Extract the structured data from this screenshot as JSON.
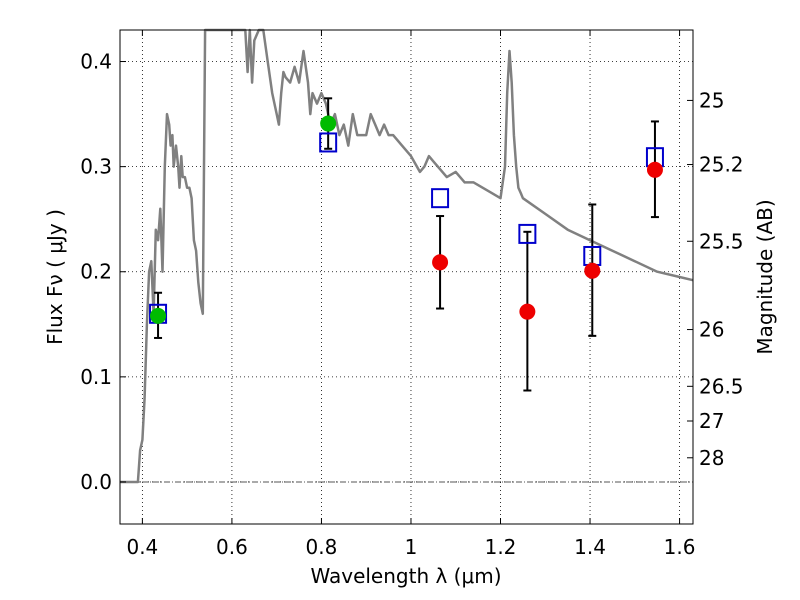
{
  "chart_data": {
    "type": "scatter",
    "xlabel": "Wavelength  λ (μm)",
    "ylabel": "Flux  Fν  ( μJy )",
    "ylabel2": "Magnitude (AB)",
    "xlim": [
      0.35,
      1.63
    ],
    "ylim": [
      -0.04,
      0.43
    ],
    "grid": true,
    "xticks": [
      0.4,
      0.6,
      0.8,
      1.0,
      1.2,
      1.4,
      1.6
    ],
    "xtick_labels": [
      "0.4",
      "0.6",
      "0.8",
      "1",
      "1.2",
      "1.4",
      "1.6"
    ],
    "yticks": [
      0.0,
      0.1,
      0.2,
      0.3,
      0.4
    ],
    "ytick_labels": [
      "0.0",
      "0.1",
      "0.2",
      "0.3",
      "0.4"
    ],
    "right_ticks": [
      {
        "label": "25",
        "flux": 0.363
      },
      {
        "label": "25.2",
        "flux": 0.302
      },
      {
        "label": "25.5",
        "flux": 0.229
      },
      {
        "label": "26",
        "flux": 0.145
      },
      {
        "label": "26.5",
        "flux": 0.091
      },
      {
        "label": "27",
        "flux": 0.058
      },
      {
        "label": "28",
        "flux": 0.023
      }
    ],
    "colors": {
      "sed": "#808080",
      "model": "#0000cc",
      "green": "#00bb00",
      "red": "#ee0000",
      "zero_line": "#555555"
    },
    "sed_line": {
      "x": [
        0.35,
        0.39,
        0.395,
        0.4,
        0.405,
        0.41,
        0.415,
        0.42,
        0.425,
        0.43,
        0.435,
        0.44,
        0.445,
        0.45,
        0.455,
        0.46,
        0.463,
        0.467,
        0.47,
        0.475,
        0.48,
        0.483,
        0.487,
        0.49,
        0.495,
        0.5,
        0.505,
        0.51,
        0.515,
        0.52,
        0.525,
        0.53,
        0.535,
        0.54,
        0.545,
        0.55,
        0.56,
        0.58,
        0.6,
        0.62,
        0.63,
        0.635,
        0.64,
        0.645,
        0.65,
        0.66,
        0.67,
        0.68,
        0.69,
        0.7,
        0.705,
        0.71,
        0.715,
        0.72,
        0.73,
        0.74,
        0.75,
        0.76,
        0.77,
        0.775,
        0.78,
        0.79,
        0.8,
        0.81,
        0.82,
        0.83,
        0.84,
        0.85,
        0.86,
        0.87,
        0.88,
        0.89,
        0.9,
        0.91,
        0.92,
        0.93,
        0.94,
        0.95,
        0.96,
        0.98,
        1.0,
        1.02,
        1.03,
        1.04,
        1.05,
        1.06,
        1.08,
        1.1,
        1.12,
        1.14,
        1.16,
        1.18,
        1.2,
        1.21,
        1.215,
        1.22,
        1.225,
        1.23,
        1.235,
        1.24,
        1.245,
        1.25,
        1.3,
        1.35,
        1.4,
        1.45,
        1.5,
        1.55,
        1.6,
        1.63
      ],
      "y": [
        0.0,
        0.0,
        0.03,
        0.04,
        0.08,
        0.15,
        0.2,
        0.21,
        0.16,
        0.24,
        0.23,
        0.26,
        0.2,
        0.3,
        0.35,
        0.34,
        0.32,
        0.33,
        0.3,
        0.32,
        0.3,
        0.28,
        0.31,
        0.29,
        0.29,
        0.28,
        0.28,
        0.27,
        0.23,
        0.22,
        0.19,
        0.17,
        0.16,
        0.43,
        0.43,
        0.43,
        0.43,
        0.43,
        0.43,
        0.43,
        0.43,
        0.39,
        0.43,
        0.38,
        0.42,
        0.43,
        0.43,
        0.4,
        0.37,
        0.35,
        0.34,
        0.37,
        0.39,
        0.385,
        0.38,
        0.395,
        0.38,
        0.41,
        0.38,
        0.35,
        0.37,
        0.36,
        0.37,
        0.36,
        0.34,
        0.35,
        0.33,
        0.34,
        0.32,
        0.35,
        0.33,
        0.33,
        0.33,
        0.35,
        0.34,
        0.33,
        0.34,
        0.33,
        0.33,
        0.32,
        0.31,
        0.295,
        0.3,
        0.31,
        0.305,
        0.3,
        0.29,
        0.295,
        0.285,
        0.285,
        0.28,
        0.275,
        0.27,
        0.3,
        0.37,
        0.41,
        0.38,
        0.33,
        0.3,
        0.28,
        0.275,
        0.27,
        0.255,
        0.24,
        0.23,
        0.22,
        0.21,
        0.2,
        0.195,
        0.192
      ]
    },
    "series": [
      {
        "marker": "open-square",
        "color": "#0000cc",
        "x": [
          0.435,
          0.815,
          1.065,
          1.26,
          1.405,
          1.545
        ],
        "y": [
          0.16,
          0.323,
          0.27,
          0.236,
          0.215,
          0.309
        ]
      },
      {
        "marker": "filled-circle",
        "color": "#00bb00",
        "x": [
          0.435,
          0.815
        ],
        "y": [
          0.158,
          0.341
        ],
        "yerr_low": [
          0.137,
          0.317
        ],
        "yerr_high": [
          0.18,
          0.365
        ]
      },
      {
        "marker": "filled-circle",
        "color": "#ee0000",
        "x": [
          1.065,
          1.26,
          1.405,
          1.545
        ],
        "y": [
          0.209,
          0.162,
          0.201,
          0.297
        ],
        "yerr_low": [
          0.165,
          0.087,
          0.139,
          0.252
        ],
        "yerr_high": [
          0.253,
          0.238,
          0.264,
          0.343
        ]
      }
    ]
  }
}
